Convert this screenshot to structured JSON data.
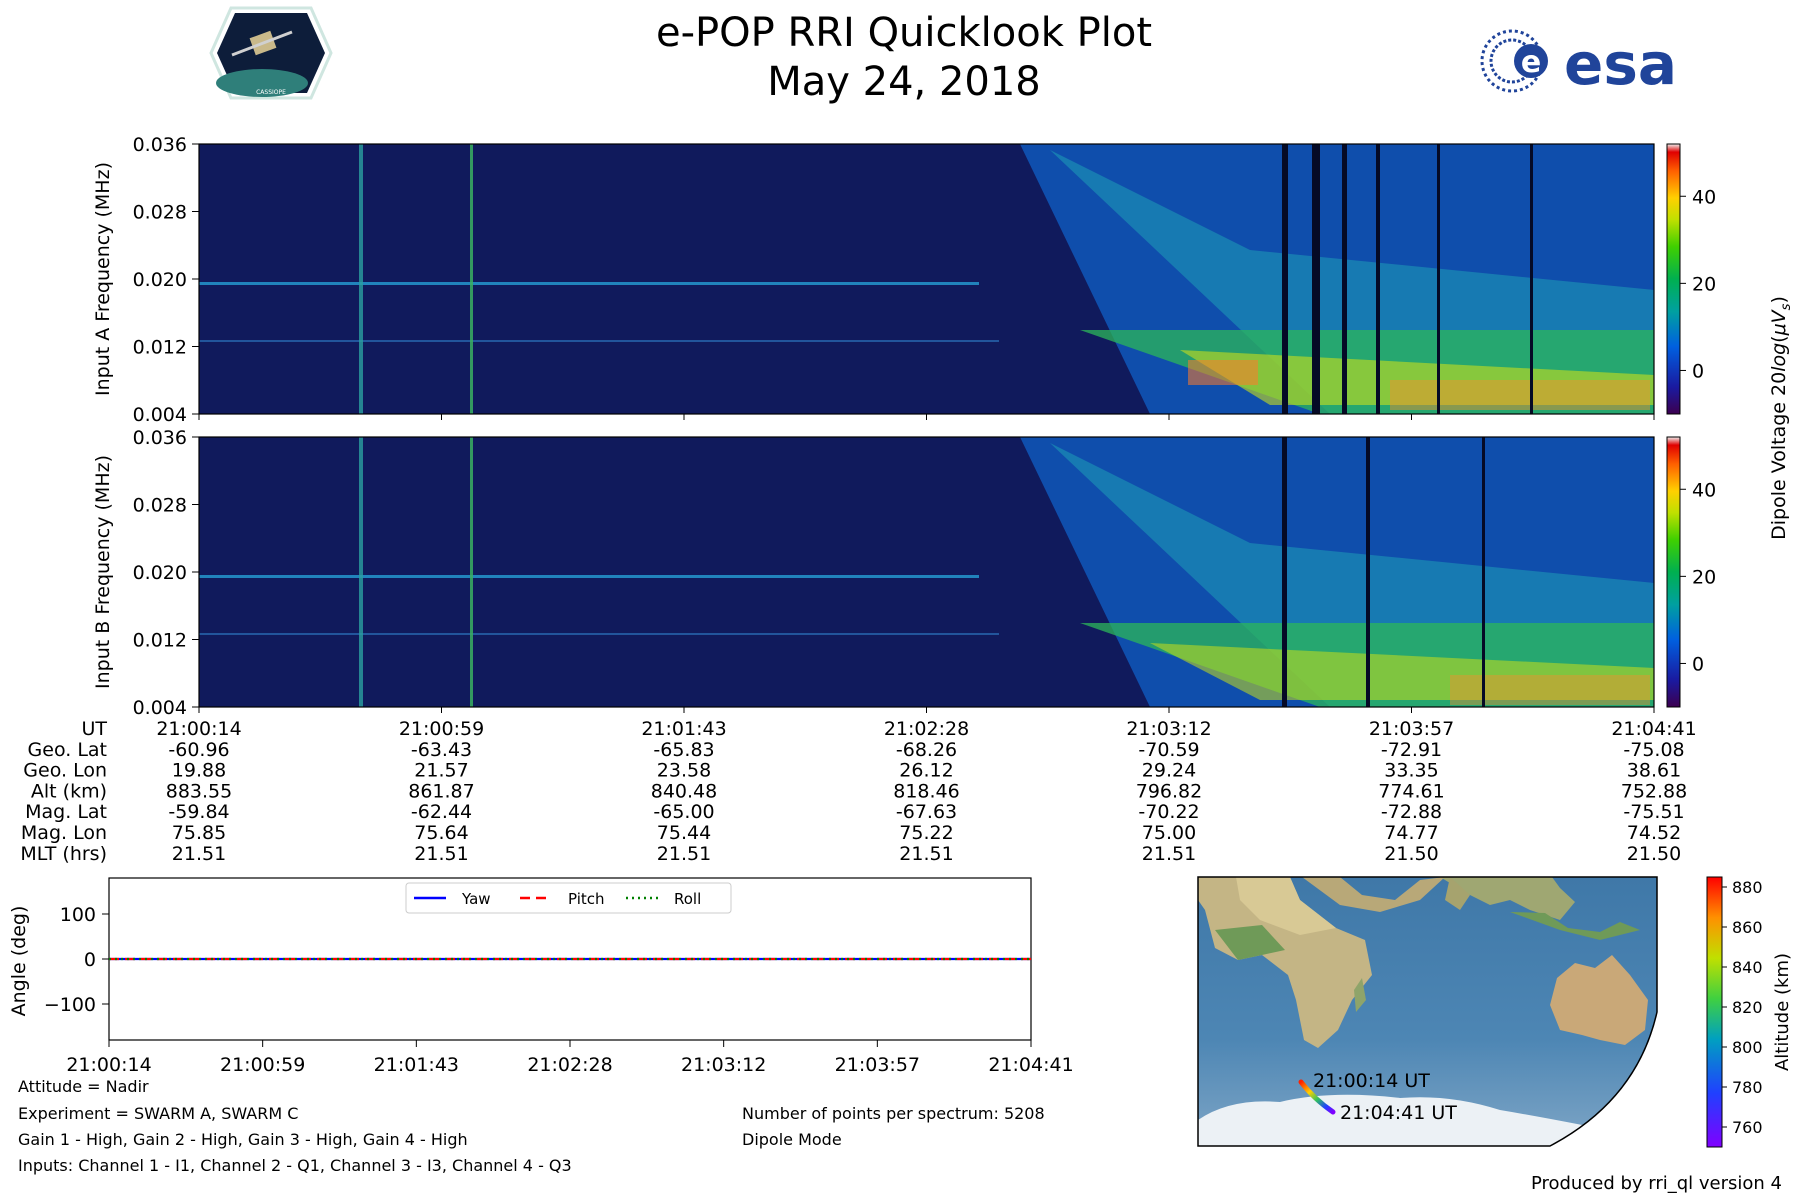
{
  "header": {
    "title": "e-POP RRI Quicklook Plot",
    "date": "May 24, 2018",
    "cassiope_logo_text": "CASSIOPE",
    "esa_logo_text": "esa"
  },
  "chart_data": [
    {
      "id": "input-a",
      "type": "heatmap",
      "ylabel": "Input A Frequency (MHz)",
      "y_ticks": [
        "0.036",
        "0.028",
        "0.020",
        "0.012",
        "0.004"
      ],
      "ylim": [
        0.004,
        0.036
      ],
      "x_ticks": [
        "21:00:14",
        "21:00:59",
        "21:01:43",
        "21:02:28",
        "21:03:12",
        "21:03:57",
        "21:04:41"
      ],
      "colorbar": {
        "ticks": [
          "40",
          "20",
          "0"
        ],
        "range": [
          -10,
          52
        ],
        "label": "Dipole Voltage 20log(μV_s)"
      }
    },
    {
      "id": "input-b",
      "type": "heatmap",
      "ylabel": "Input B Frequency (MHz)",
      "y_ticks": [
        "0.036",
        "0.028",
        "0.020",
        "0.012",
        "0.004"
      ],
      "ylim": [
        0.004,
        0.036
      ],
      "x_ticks": [
        "21:00:14",
        "21:00:59",
        "21:01:43",
        "21:02:28",
        "21:03:12",
        "21:03:57",
        "21:04:41"
      ],
      "colorbar": {
        "ticks": [
          "40",
          "20",
          "0"
        ],
        "range": [
          -10,
          52
        ]
      }
    },
    {
      "id": "attitude",
      "type": "line",
      "ylabel": "Angle (deg)",
      "y_ticks": [
        "100",
        "0",
        "−100"
      ],
      "ylim": [
        -180,
        180
      ],
      "x_ticks": [
        "21:00:14",
        "21:00:59",
        "21:01:43",
        "21:02:28",
        "21:03:12",
        "21:03:57",
        "21:04:41"
      ],
      "series": [
        {
          "name": "Yaw",
          "color": "#0000ff",
          "values": [
            0,
            0,
            0,
            0,
            0,
            0,
            0
          ]
        },
        {
          "name": "Pitch",
          "color": "#ff0000",
          "values": [
            0,
            0,
            0,
            0,
            0,
            0,
            0
          ]
        },
        {
          "name": "Roll",
          "color": "#008000",
          "values": [
            0,
            0,
            0,
            0,
            0,
            0,
            0
          ]
        }
      ]
    },
    {
      "id": "map",
      "type": "scatter",
      "start_label": "21:00:14 UT",
      "end_label": "21:04:41 UT",
      "colorbar": {
        "label": "Altitude (km)",
        "ticks": [
          "880",
          "860",
          "840",
          "820",
          "800",
          "780",
          "760"
        ],
        "range": [
          750,
          885
        ]
      }
    }
  ],
  "ephemeris": {
    "labels": [
      "UT",
      "Geo. Lat",
      "Geo. Lon",
      "Alt (km)",
      "Mag. Lat",
      "Mag. Lon",
      "MLT (hrs)"
    ],
    "columns": [
      [
        "21:00:14",
        "-60.96",
        "19.88",
        "883.55",
        "-59.84",
        "75.85",
        "21.51"
      ],
      [
        "21:00:59",
        "-63.43",
        "21.57",
        "861.87",
        "-62.44",
        "75.64",
        "21.51"
      ],
      [
        "21:01:43",
        "-65.83",
        "23.58",
        "840.48",
        "-65.00",
        "75.44",
        "21.51"
      ],
      [
        "21:02:28",
        "-68.26",
        "26.12",
        "818.46",
        "-67.63",
        "75.22",
        "21.51"
      ],
      [
        "21:03:12",
        "-70.59",
        "29.24",
        "796.82",
        "-70.22",
        "75.00",
        "21.51"
      ],
      [
        "21:03:57",
        "-72.91",
        "33.35",
        "774.61",
        "-72.88",
        "74.77",
        "21.50"
      ],
      [
        "21:04:41",
        "-75.08",
        "38.61",
        "752.88",
        "-75.51",
        "74.52",
        "21.50"
      ]
    ]
  },
  "info": {
    "attitude": "Attitude = Nadir",
    "experiment": "Experiment = SWARM A, SWARM C",
    "gain": "Gain 1 - High, Gain 2 - High, Gain 3 - High, Gain 4 - High",
    "inputs": "Inputs: Channel 1 - I1, Channel 2 - Q1, Channel 3 - I3, Channel 4 - Q3",
    "points": "Number of points per spectrum: 5208",
    "mode": "Dipole Mode",
    "produced_by": "Produced by rri_ql version 4"
  }
}
